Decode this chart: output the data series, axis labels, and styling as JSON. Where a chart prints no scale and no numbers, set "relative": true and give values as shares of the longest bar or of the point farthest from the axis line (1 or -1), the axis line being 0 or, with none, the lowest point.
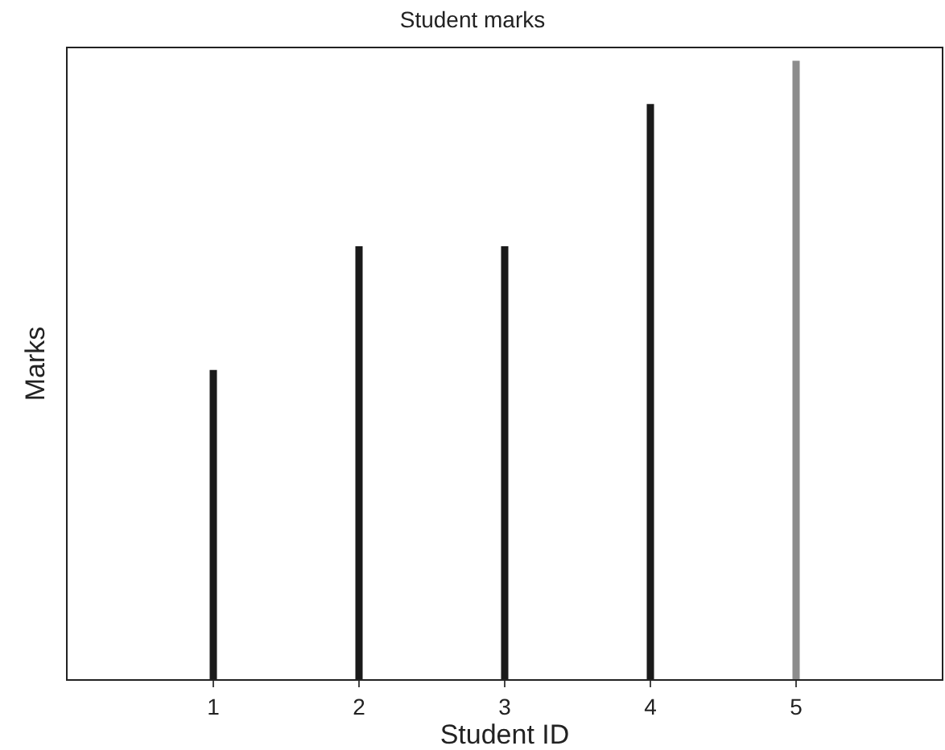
{
  "chart_data": {
    "type": "bar",
    "title": "Student marks",
    "xlabel": "Student ID",
    "ylabel": "Marks",
    "x": [
      1,
      2,
      3,
      4,
      5
    ],
    "values": [
      0.5,
      0.7,
      0.7,
      0.93,
      1
    ],
    "colors": [
      "#1a1a1a",
      "#1a1a1a",
      "#1a1a1a",
      "#1a1a1a",
      "#8c8c8c"
    ],
    "relative": true,
    "xlim": [
      0,
      6
    ],
    "xticks": [
      1,
      2,
      3,
      4,
      5
    ],
    "tick_labels": "x"
  }
}
